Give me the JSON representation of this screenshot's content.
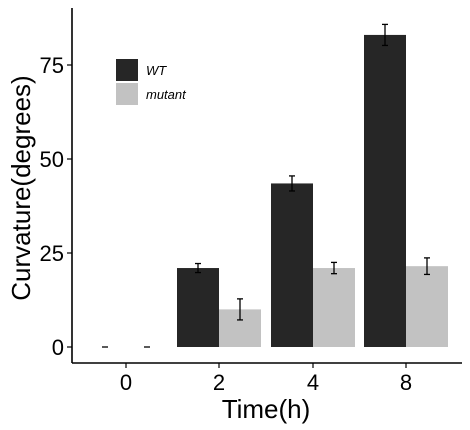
{
  "chart_data": {
    "type": "bar",
    "categories": [
      "0",
      "2",
      "4",
      "8"
    ],
    "series": [
      {
        "name": "WT",
        "color": "#262626",
        "values": [
          0,
          21,
          43.5,
          83
        ],
        "errors": [
          0,
          1.2,
          2,
          2.8
        ]
      },
      {
        "name": "mutant",
        "color": "#c2c2c2",
        "values": [
          0,
          10,
          21,
          21.5
        ],
        "errors": [
          0,
          2.8,
          1.5,
          2.2
        ]
      }
    ],
    "xlabel": "Time(h)",
    "ylabel": "Curvature(degrees)",
    "ylim": [
      0,
      90
    ],
    "yticks": [
      0,
      25,
      50,
      75
    ],
    "legend_position": "top-left",
    "grid": false
  }
}
